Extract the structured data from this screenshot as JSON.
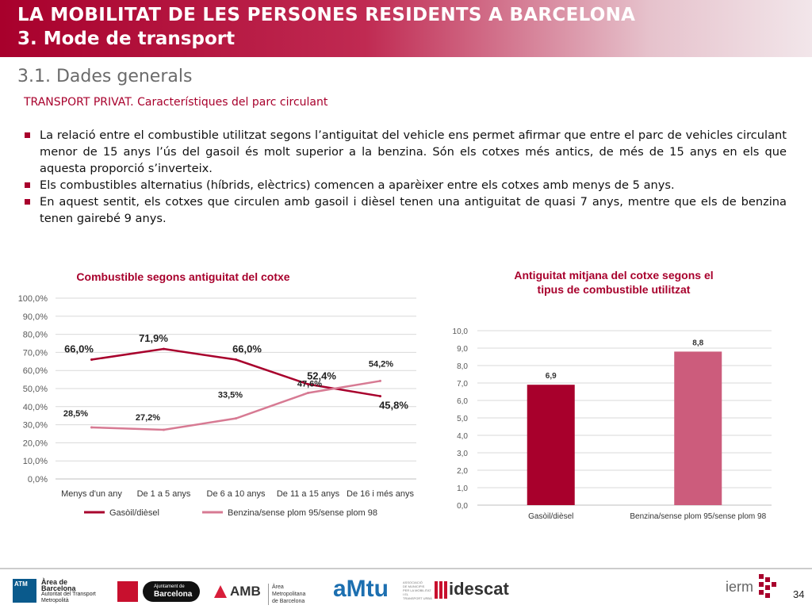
{
  "header": {
    "title": "LA MOBILITAT DE LES PERSONES RESIDENTS A BARCELONA",
    "subtitle": "3. Mode de transport",
    "colors": {
      "brand": "#a8002c"
    }
  },
  "section_title": "3.1. Dades generals",
  "subheading": "TRANSPORT PRIVAT. Característiques del parc circulant",
  "bullets": [
    "La relació entre el combustible utilitzat segons l’antiguitat del vehicle ens permet afirmar que entre el parc de vehicles circulant menor de 15 anys l’ús del gasoil és molt superior a la benzina. Són els cotxes més antics, de més de 15 anys en els que aquesta proporció s’inverteix.",
    "Els combustibles alternatius (híbrids, elèctrics) comencen a aparèixer entre els cotxes amb menys de 5 anys.",
    "En aquest sentit, els cotxes que circulen amb gasoil i dièsel tenen una antiguitat de quasi 7 anys, mentre que els de benzina tenen gairebé 9 anys."
  ],
  "chart_data": [
    {
      "type": "line",
      "title": "Combustible segons antiguitat del cotxe",
      "categories": [
        "Menys d'un any",
        "De 1 a 5 anys",
        "De 6 a 10 anys",
        "De 11 a 15 anys",
        "De 16 i més anys"
      ],
      "ylim": [
        0,
        100
      ],
      "yticks": [
        "0,0%",
        "10,0%",
        "20,0%",
        "30,0%",
        "40,0%",
        "50,0%",
        "60,0%",
        "70,0%",
        "80,0%",
        "90,0%",
        "100,0%"
      ],
      "grid": true,
      "legend_position": "bottom",
      "series": [
        {
          "name": "Gasòil/dièsel",
          "color": "#a8002c",
          "values": [
            66.0,
            71.9,
            66.0,
            52.4,
            45.8
          ],
          "labels": [
            "66,0%",
            "71,9%",
            "66,0%",
            "52,4%",
            "45,8%"
          ]
        },
        {
          "name": "Benzina/sense plom 95/sense plom 98",
          "color": "#d77a93",
          "values": [
            28.5,
            27.2,
            33.5,
            47.6,
            54.2
          ],
          "labels": [
            "28,5%",
            "27,2%",
            "33,5%",
            "47,6%",
            "54,2%"
          ]
        }
      ]
    },
    {
      "type": "bar",
      "title": "Antiguitat mitjana del cotxe segons el tipus de combustible utilitzat",
      "title_lines": [
        "Antiguitat mitjana del cotxe segons el",
        "tipus de combustible utilitzat"
      ],
      "categories": [
        "Gasòil/dièsel",
        "Benzina/sense plom 95/sense plom 98"
      ],
      "values": [
        6.9,
        8.8
      ],
      "labels": [
        "6,9",
        "8,8"
      ],
      "colors": [
        "#a8002c",
        "#cc5c7c"
      ],
      "ylim": [
        0,
        10
      ],
      "yticks": [
        "0,0",
        "1,0",
        "2,0",
        "3,0",
        "4,0",
        "5,0",
        "6,0",
        "7,0",
        "8,0",
        "9,0",
        "10,0"
      ],
      "grid": true
    }
  ],
  "footer": {
    "logos": [
      {
        "name": "atm",
        "lines": [
          "ATM",
          "Àrea de Barcelona",
          "Autoritat del Transport",
          "Metropolità"
        ]
      },
      {
        "name": "ajuntament",
        "lines": [
          "Ajuntament de",
          "Barcelona"
        ]
      },
      {
        "name": "amb",
        "lines": [
          "AMB",
          "Àrea Metropolitana",
          "de Barcelona"
        ]
      },
      {
        "name": "amtu",
        "lines": [
          "aMtu",
          "ASSOCIACIÓ",
          "DE MUNICIPIS",
          "PER LA MOBILITAT I EL",
          "TRANSPORT URBÀ"
        ]
      },
      {
        "name": "idescat",
        "lines": [
          "idescat"
        ]
      },
      {
        "name": "iermb",
        "lines": [
          "ierm"
        ]
      }
    ],
    "page_number": "34"
  }
}
